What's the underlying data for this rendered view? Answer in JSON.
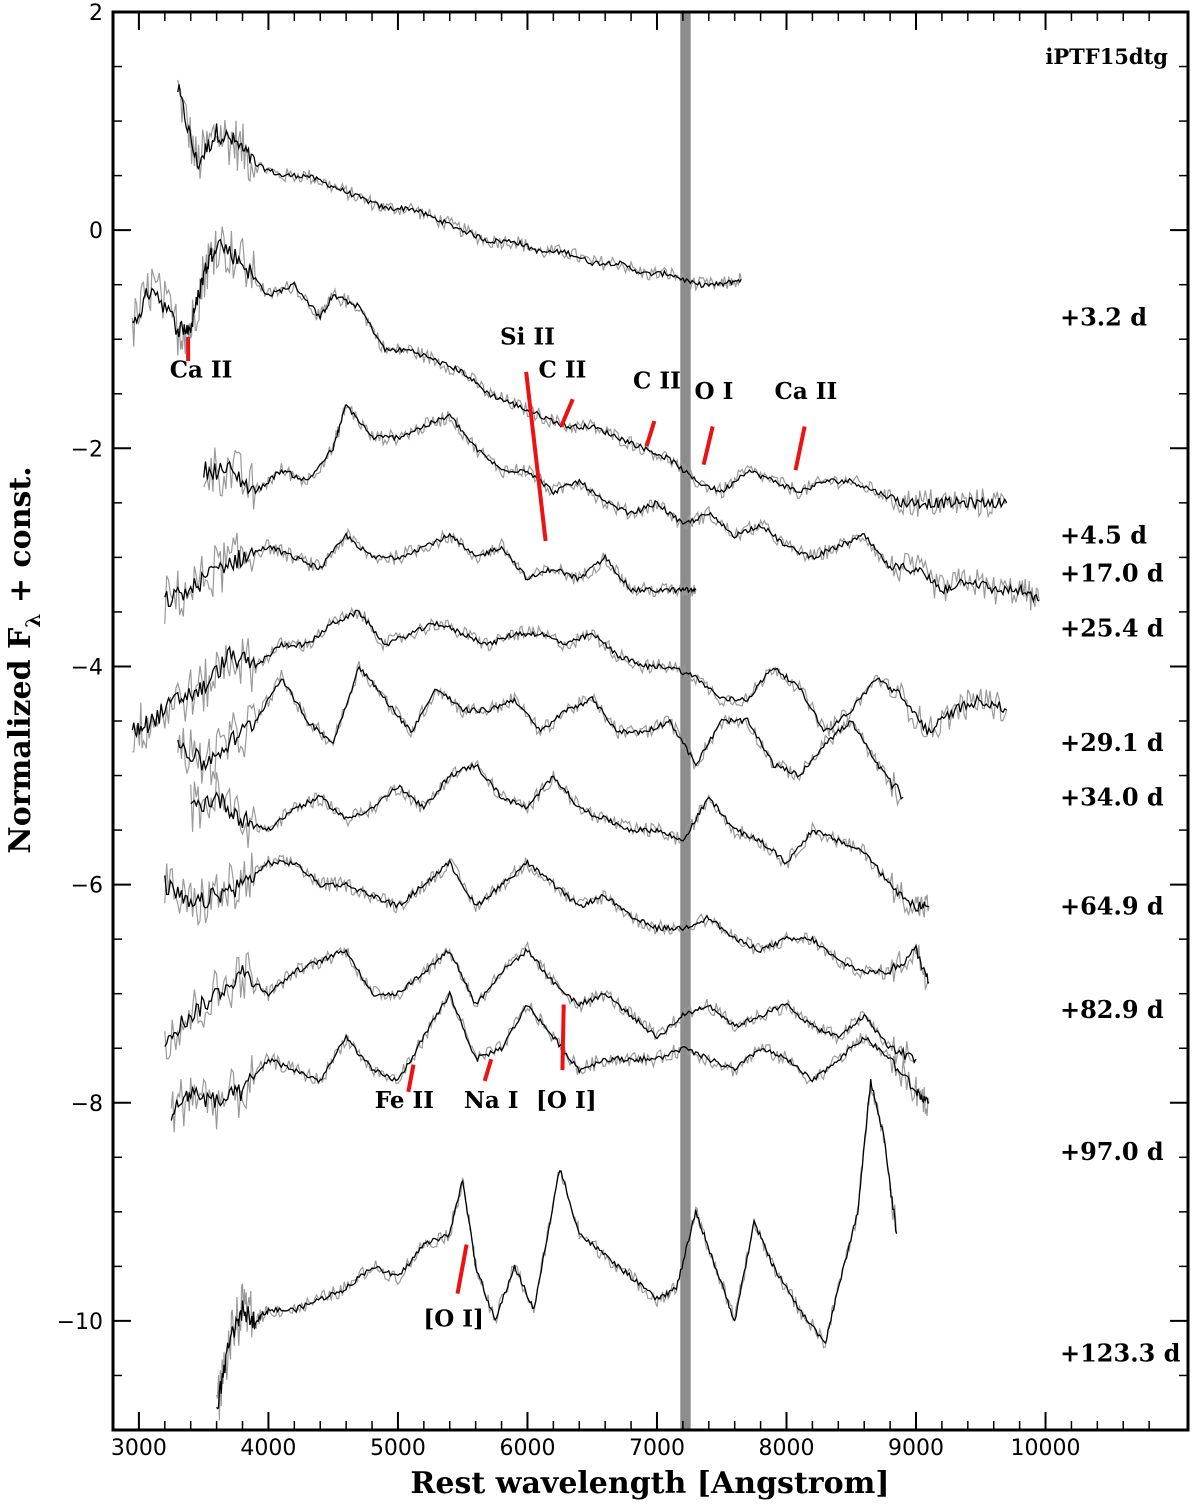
{
  "chart_data": {
    "type": "line",
    "title": "iPTF15dtg",
    "xlabel": "Rest wavelength [Angstrom]",
    "ylabel": "Normalized F",
    "ylabel_sub": "λ",
    "ylabel_tail": " + const.",
    "xlim": [
      2800,
      11100
    ],
    "ylim": [
      -11,
      2
    ],
    "xticks": [
      3000,
      4000,
      5000,
      6000,
      7000,
      8000,
      9000,
      10000
    ],
    "xtick_labels": [
      "3000",
      "4000",
      "5000",
      "6000",
      "7000",
      "8000",
      "9000",
      "10000"
    ],
    "yticks": [
      2,
      0,
      -2,
      -4,
      -6,
      -8,
      -10
    ],
    "ytick_labels": [
      "2",
      "0",
      "−2",
      "−4",
      "−6",
      "−8",
      "−10"
    ],
    "telluric_band": [
      7180,
      7260
    ],
    "series": [
      {
        "epoch": "+3.2 d",
        "label_y": -0.8,
        "x": [
          3300,
          3450,
          3600,
          3750,
          3900,
          4100,
          4300,
          4500,
          4700,
          4900,
          5100,
          5300,
          5500,
          5700,
          5900,
          6100,
          6300,
          6500,
          6700,
          6900,
          7100,
          7300,
          7500,
          7650
        ],
        "y": [
          1.3,
          0.6,
          0.9,
          0.8,
          0.6,
          0.5,
          0.5,
          0.4,
          0.3,
          0.2,
          0.2,
          0.1,
          0.0,
          -0.1,
          -0.1,
          -0.2,
          -0.2,
          -0.3,
          -0.3,
          -0.4,
          -0.4,
          -0.5,
          -0.5,
          -0.45
        ]
      },
      {
        "epoch": "+4.5 d",
        "label_y": -2.8,
        "x": [
          2950,
          3100,
          3300,
          3400,
          3500,
          3600,
          3800,
          4000,
          4200,
          4400,
          4500,
          4700,
          4900,
          5100,
          5300,
          5500,
          5700,
          5900,
          6100,
          6300,
          6500,
          6700,
          6900,
          7100,
          7300,
          7500,
          7700,
          7900,
          8100,
          8300,
          8500,
          8700,
          8900,
          9100,
          9300,
          9500,
          9700
        ],
        "y": [
          -0.9,
          -0.5,
          -0.9,
          -0.9,
          -0.4,
          -0.1,
          -0.3,
          -0.6,
          -0.5,
          -0.8,
          -0.6,
          -0.7,
          -1.1,
          -1.1,
          -1.2,
          -1.3,
          -1.5,
          -1.6,
          -1.7,
          -1.8,
          -1.8,
          -1.9,
          -2.0,
          -2.1,
          -2.3,
          -2.4,
          -2.2,
          -2.3,
          -2.4,
          -2.3,
          -2.3,
          -2.4,
          -2.5,
          -2.5,
          -2.5,
          -2.5,
          -2.5
        ]
      },
      {
        "epoch": "+17.0 d",
        "label_y": -3.15,
        "x": [
          3500,
          3700,
          3900,
          4100,
          4300,
          4500,
          4600,
          4800,
          5000,
          5200,
          5400,
          5600,
          5800,
          6000,
          6200,
          6400,
          6600,
          6800,
          7000,
          7200,
          7400,
          7600,
          7800,
          8000,
          8200,
          8400,
          8600,
          8800,
          9000,
          9200,
          9400,
          9600,
          9800,
          9950
        ],
        "y": [
          -2.2,
          -2.2,
          -2.4,
          -2.2,
          -2.3,
          -2.0,
          -1.6,
          -1.9,
          -1.9,
          -1.8,
          -1.7,
          -2.0,
          -2.2,
          -2.2,
          -2.4,
          -2.3,
          -2.5,
          -2.6,
          -2.5,
          -2.7,
          -2.6,
          -2.8,
          -2.7,
          -2.9,
          -3.0,
          -2.9,
          -2.8,
          -3.1,
          -3.1,
          -3.3,
          -3.2,
          -3.3,
          -3.3,
          -3.4
        ]
      },
      {
        "epoch": "+25.4 d",
        "label_y": -3.65,
        "x": [
          3200,
          3400,
          3600,
          3800,
          4000,
          4200,
          4400,
          4600,
          4800,
          5000,
          5200,
          5400,
          5600,
          5800,
          6000,
          6200,
          6400,
          6600,
          6800,
          7000,
          7200,
          7300
        ],
        "y": [
          -3.4,
          -3.3,
          -3.1,
          -3.0,
          -2.9,
          -3.0,
          -3.1,
          -2.8,
          -3.0,
          -3.0,
          -2.9,
          -2.8,
          -3.0,
          -2.9,
          -3.2,
          -3.1,
          -3.2,
          -3.0,
          -3.3,
          -3.3,
          -3.3,
          -3.3
        ]
      },
      {
        "epoch": "+29.1 d",
        "label_y": -4.7,
        "x": [
          2950,
          3100,
          3300,
          3500,
          3700,
          3900,
          4100,
          4300,
          4500,
          4700,
          4900,
          5100,
          5300,
          5500,
          5700,
          5900,
          6100,
          6300,
          6500,
          6700,
          6900,
          7100,
          7300,
          7500,
          7700,
          7900,
          8100,
          8300,
          8500,
          8700,
          8900,
          9100,
          9300,
          9500,
          9700
        ],
        "y": [
          -4.6,
          -4.5,
          -4.3,
          -4.2,
          -3.9,
          -4.0,
          -3.8,
          -3.8,
          -3.6,
          -3.5,
          -3.8,
          -3.7,
          -3.6,
          -3.7,
          -3.8,
          -3.7,
          -3.7,
          -3.8,
          -3.7,
          -3.9,
          -4.0,
          -4.0,
          -4.1,
          -4.3,
          -4.3,
          -4.0,
          -4.2,
          -4.6,
          -4.4,
          -4.1,
          -4.3,
          -4.6,
          -4.4,
          -4.3,
          -4.4
        ]
      },
      {
        "epoch": "+34.0 d",
        "label_y": -5.2,
        "x": [
          3300,
          3500,
          3700,
          3900,
          4100,
          4300,
          4500,
          4700,
          4900,
          5100,
          5300,
          5500,
          5700,
          5900,
          6100,
          6300,
          6500,
          6700,
          6900,
          7100,
          7300,
          7500,
          7700,
          7900,
          8100,
          8300,
          8500,
          8700,
          8900
        ],
        "y": [
          -4.7,
          -4.9,
          -4.7,
          -4.5,
          -4.1,
          -4.5,
          -4.7,
          -4.0,
          -4.3,
          -4.6,
          -4.2,
          -4.4,
          -4.4,
          -4.3,
          -4.6,
          -4.4,
          -4.3,
          -4.6,
          -4.6,
          -4.5,
          -4.9,
          -4.5,
          -4.5,
          -4.9,
          -5.0,
          -4.7,
          -4.5,
          -4.9,
          -5.2
        ]
      },
      {
        "epoch": "+64.9 d",
        "label_y": -6.2,
        "x": [
          3400,
          3600,
          3800,
          4000,
          4200,
          4400,
          4600,
          4800,
          5000,
          5200,
          5400,
          5600,
          5800,
          6000,
          6200,
          6400,
          6600,
          6800,
          7000,
          7200,
          7400,
          7600,
          7800,
          8000,
          8200,
          8400,
          8600,
          8800,
          9000,
          9100
        ],
        "y": [
          -5.3,
          -5.2,
          -5.4,
          -5.5,
          -5.3,
          -5.2,
          -5.4,
          -5.3,
          -5.1,
          -5.3,
          -5.0,
          -4.9,
          -5.2,
          -5.3,
          -5.0,
          -5.3,
          -5.4,
          -5.5,
          -5.5,
          -5.6,
          -5.2,
          -5.5,
          -5.6,
          -5.8,
          -5.5,
          -5.6,
          -5.7,
          -6.0,
          -6.2,
          -6.2
        ]
      },
      {
        "epoch": "+82.9 d",
        "label_y": -7.15,
        "x": [
          3200,
          3400,
          3600,
          3800,
          4000,
          4200,
          4400,
          4600,
          4800,
          5000,
          5200,
          5400,
          5600,
          5800,
          6000,
          6200,
          6400,
          6600,
          6800,
          7000,
          7200,
          7400,
          7600,
          7800,
          8000,
          8200,
          8400,
          8600,
          8800,
          9000,
          9100
        ],
        "y": [
          -6.0,
          -6.2,
          -6.1,
          -6.0,
          -5.8,
          -5.8,
          -6.0,
          -6.0,
          -6.1,
          -6.2,
          -6.0,
          -5.8,
          -6.2,
          -6.0,
          -5.8,
          -6.0,
          -6.2,
          -6.1,
          -6.3,
          -6.4,
          -6.4,
          -6.3,
          -6.5,
          -6.6,
          -6.5,
          -6.5,
          -6.7,
          -6.8,
          -6.8,
          -6.6,
          -6.9
        ]
      },
      {
        "epoch": "+97.0 d",
        "label_y": -8.45,
        "x": [
          3200,
          3400,
          3600,
          3800,
          4000,
          4200,
          4400,
          4600,
          4800,
          5000,
          5200,
          5400,
          5600,
          5800,
          6000,
          6200,
          6400,
          6600,
          6800,
          7000,
          7200,
          7400,
          7600,
          7800,
          8000,
          8200,
          8400,
          8600,
          8800,
          9000
        ],
        "y": [
          -7.4,
          -7.2,
          -7.0,
          -6.8,
          -7.0,
          -6.8,
          -6.7,
          -6.6,
          -7.0,
          -7.0,
          -6.8,
          -6.6,
          -7.1,
          -6.8,
          -6.6,
          -6.9,
          -7.1,
          -7.0,
          -7.2,
          -7.4,
          -7.2,
          -7.1,
          -7.3,
          -7.2,
          -7.1,
          -7.3,
          -7.4,
          -7.2,
          -7.5,
          -7.6
        ]
      },
      {
        "epoch": "+123.3 d",
        "label_y": -10.3,
        "x": [
          3250,
          3400,
          3600,
          3800,
          4000,
          4200,
          4400,
          4600,
          4800,
          5000,
          5200,
          5400,
          5600,
          5800,
          6000,
          6200,
          6400,
          6600,
          6800,
          7000,
          7200,
          7400,
          7600,
          7800,
          8000,
          8200,
          8400,
          8600,
          8800,
          9000,
          9100
        ],
        "y": [
          -8.1,
          -7.9,
          -8.0,
          -7.9,
          -7.6,
          -7.7,
          -7.8,
          -7.4,
          -7.7,
          -7.8,
          -7.4,
          -7.0,
          -7.6,
          -7.5,
          -7.1,
          -7.4,
          -7.7,
          -7.6,
          -7.6,
          -7.6,
          -7.5,
          -7.6,
          -7.7,
          -7.5,
          -7.6,
          -7.8,
          -7.6,
          -7.4,
          -7.6,
          -7.9,
          -8.0
        ]
      },
      {
        "epoch": "",
        "x": [
          3600,
          3700,
          3800,
          3900,
          4000,
          4200,
          4400,
          4600,
          4800,
          5000,
          5200,
          5400,
          5500,
          5600,
          5750,
          5900,
          6050,
          6250,
          6400,
          6600,
          6800,
          7000,
          7150,
          7300,
          7450,
          7600,
          7750,
          7900,
          8100,
          8300,
          8400,
          8550,
          8650,
          8750,
          8850
        ],
        "y": [
          -10.8,
          -10.2,
          -9.9,
          -10.0,
          -9.9,
          -9.9,
          -9.8,
          -9.7,
          -9.5,
          -9.6,
          -9.3,
          -9.2,
          -8.7,
          -9.5,
          -10.0,
          -9.5,
          -9.9,
          -8.6,
          -9.2,
          -9.4,
          -9.6,
          -9.8,
          -9.7,
          -9.0,
          -9.5,
          -10.0,
          -9.1,
          -9.5,
          -9.9,
          -10.2,
          -9.7,
          -9.0,
          -7.8,
          -8.3,
          -9.2
        ]
      }
    ],
    "line_ids": [
      {
        "label": "Ca II",
        "text_x": 3480,
        "text_y": -1.35,
        "tick": [
          [
            3380,
            -0.98
          ],
          [
            3380,
            -1.2
          ]
        ]
      },
      {
        "label": "Si II",
        "text_x": 6000,
        "text_y": -1.05,
        "tick": [
          [
            5990,
            -1.3
          ],
          [
            6140,
            -2.85
          ]
        ]
      },
      {
        "label": "C II",
        "text_x": 6270,
        "text_y": -1.35,
        "tick": [
          [
            6350,
            -1.55
          ],
          [
            6260,
            -1.8
          ]
        ]
      },
      {
        "label": "C II",
        "text_x": 7000,
        "text_y": -1.45,
        "tick": [
          [
            6980,
            -1.75
          ],
          [
            6920,
            -1.98
          ]
        ]
      },
      {
        "label": "O I",
        "text_x": 7440,
        "text_y": -1.55,
        "tick": [
          [
            7430,
            -1.8
          ],
          [
            7360,
            -2.15
          ]
        ]
      },
      {
        "label": "Ca II",
        "text_x": 8150,
        "text_y": -1.55,
        "tick": [
          [
            8140,
            -1.8
          ],
          [
            8070,
            -2.2
          ]
        ]
      },
      {
        "label": "Fe II",
        "text_x": 5050,
        "text_y": -8.05,
        "tick": [
          [
            5120,
            -7.65
          ],
          [
            5080,
            -7.9
          ]
        ]
      },
      {
        "label": "Na I",
        "text_x": 5720,
        "text_y": -8.05,
        "tick": [
          [
            5720,
            -7.6
          ],
          [
            5670,
            -7.8
          ]
        ]
      },
      {
        "label": "[O I]",
        "text_x": 6300,
        "text_y": -8.05,
        "tick": [
          [
            6280,
            -7.1
          ],
          [
            6270,
            -7.7
          ]
        ]
      },
      {
        "label": "[O I]",
        "text_x": 5430,
        "text_y": -10.05,
        "tick": [
          [
            5530,
            -9.3
          ],
          [
            5460,
            -9.75
          ]
        ]
      }
    ],
    "grid": false,
    "legend": "none"
  }
}
